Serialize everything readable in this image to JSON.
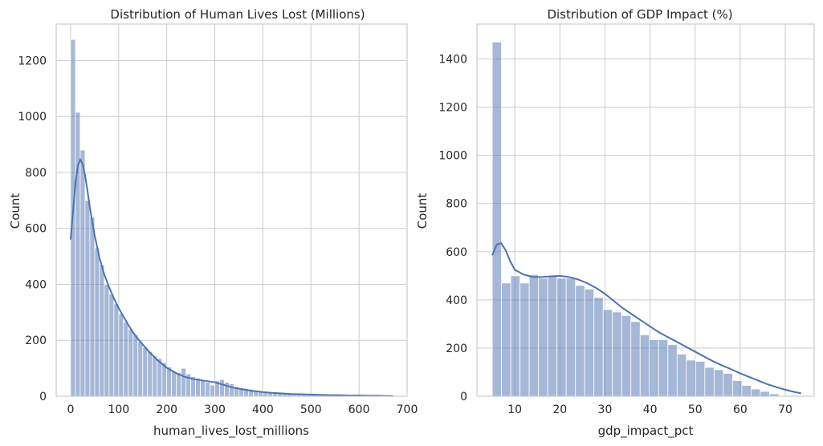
{
  "chart_data": [
    {
      "type": "bar",
      "subtype": "histogram",
      "title": "Distribution of Human Lives Lost (Millions)",
      "xlabel": "human_lives_lost_millions",
      "ylabel": "Count",
      "xlim": [
        -30,
        700
      ],
      "ylim": [
        0,
        1330
      ],
      "xticks": [
        0,
        100,
        200,
        300,
        400,
        500,
        600,
        700
      ],
      "yticks": [
        0,
        200,
        400,
        600,
        800,
        1000,
        1200
      ],
      "bin_start": 0,
      "bin_width": 10,
      "values": [
        1275,
        1015,
        880,
        700,
        640,
        530,
        470,
        400,
        365,
        330,
        295,
        265,
        240,
        220,
        195,
        175,
        160,
        145,
        135,
        120,
        105,
        90,
        85,
        100,
        80,
        70,
        65,
        55,
        50,
        40,
        55,
        60,
        50,
        45,
        35,
        30,
        28,
        25,
        20,
        20,
        17,
        15,
        12,
        10,
        8,
        8,
        6,
        6,
        5,
        5,
        4,
        4,
        3,
        3,
        3,
        2,
        2,
        2,
        2,
        1,
        1,
        1,
        1,
        1,
        1,
        1,
        1
      ],
      "kde": {
        "x": [
          0,
          5,
          10,
          15,
          20,
          25,
          30,
          35,
          40,
          50,
          60,
          70,
          80,
          90,
          100,
          110,
          120,
          130,
          140,
          160,
          180,
          200,
          220,
          240,
          260,
          280,
          300,
          320,
          340,
          360,
          380,
          400,
          420,
          440,
          460,
          480,
          500,
          520,
          540,
          560,
          580,
          600,
          620,
          640,
          660,
          670
        ],
        "y": [
          560,
          660,
          760,
          825,
          845,
          830,
          790,
          735,
          675,
          575,
          495,
          435,
          390,
          350,
          315,
          285,
          255,
          228,
          205,
          165,
          130,
          102,
          82,
          68,
          60,
          55,
          50,
          40,
          30,
          24,
          19,
          15,
          12,
          10,
          8,
          7,
          6,
          5,
          4,
          4,
          3,
          3,
          2,
          2,
          1,
          1
        ]
      },
      "grid": true
    },
    {
      "type": "bar",
      "subtype": "histogram",
      "title": "Distribution of GDP Impact (%)",
      "xlabel": "gdp_impact_pct",
      "ylabel": "Count",
      "xlim": [
        1.6,
        76.4
      ],
      "ylim": [
        0,
        1545
      ],
      "xticks": [
        10,
        20,
        30,
        40,
        50,
        60,
        70
      ],
      "yticks": [
        0,
        200,
        400,
        600,
        800,
        1000,
        1200,
        1400
      ],
      "bin_start": 5,
      "bin_width": 2.05,
      "values": [
        1470,
        470,
        500,
        470,
        505,
        490,
        500,
        490,
        490,
        460,
        445,
        410,
        360,
        350,
        335,
        310,
        255,
        235,
        235,
        215,
        175,
        150,
        145,
        120,
        110,
        95,
        65,
        45,
        30,
        20,
        10
      ],
      "kde": {
        "x": [
          5,
          6,
          7,
          8,
          9,
          10,
          12,
          14,
          16,
          18,
          20,
          22,
          24,
          26,
          28,
          30,
          32,
          34,
          36,
          38,
          40,
          42,
          44,
          46,
          48,
          50,
          52,
          54,
          56,
          58,
          60,
          62,
          64,
          66,
          68,
          70,
          72,
          73.5
        ],
        "y": [
          585,
          630,
          635,
          605,
          560,
          525,
          505,
          495,
          495,
          498,
          500,
          495,
          485,
          470,
          450,
          425,
          395,
          365,
          340,
          315,
          290,
          265,
          245,
          225,
          205,
          185,
          165,
          145,
          128,
          112,
          95,
          80,
          65,
          50,
          38,
          27,
          18,
          12
        ]
      },
      "grid": true
    }
  ]
}
